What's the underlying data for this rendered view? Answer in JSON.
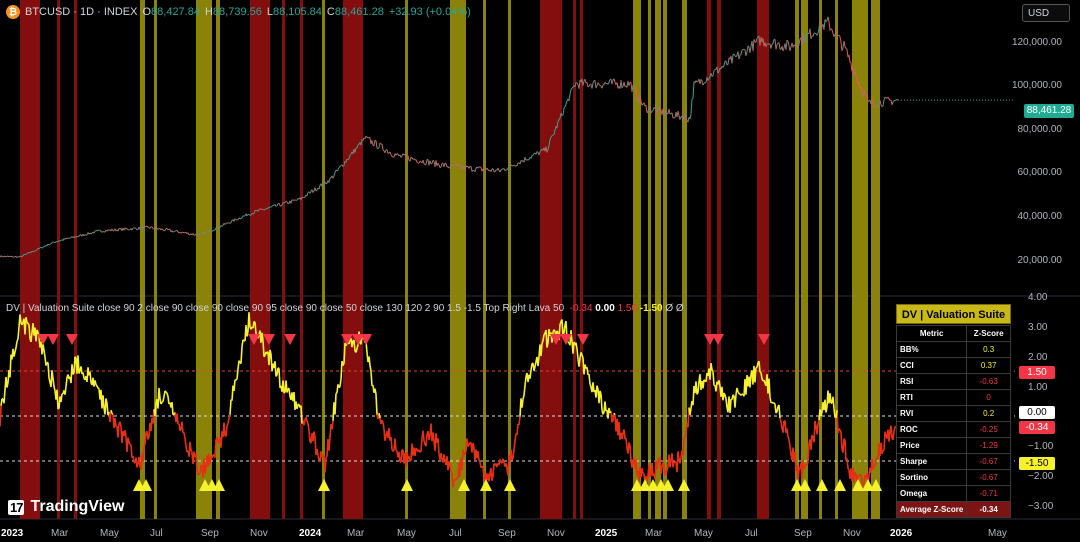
{
  "header": {
    "symbol": "BTCUSD · 1D · INDEX",
    "open_label": "O",
    "open": "88,427.84",
    "high_label": "H",
    "high": "88,739.56",
    "low_label": "L",
    "low": "88,105.84",
    "close_label": "C",
    "close": "88,461.28",
    "change": "+32.93 (+0.04%)"
  },
  "currency": "USD",
  "price_axis": {
    "ticks": [
      "120,000.00",
      "100,000.00",
      "80,000.00",
      "60,000.00",
      "40,000.00",
      "20,000.00"
    ],
    "last_price": "88,461.28"
  },
  "indicator": {
    "header_text": "DV | Valuation Suite close 90 2 close 90 close 90 close 90 95 close 90 close 50 close 130 120 2 90 1.5 -1.5 Top Right Lava 50",
    "value1": "-0.34",
    "value2": "0.00",
    "value3": "1.50",
    "value4": "-1.50",
    "tail": "Ø Ø",
    "axis_ticks": [
      "4.00",
      "3.00",
      "2.00",
      "1.00",
      "−1.00",
      "−2.00",
      "−3.00"
    ],
    "badges": {
      "upper": "1.50",
      "zero": "0.00",
      "current": "-0.34",
      "lower": "-1.50"
    }
  },
  "valuation_table": {
    "title": "DV | Valuation Suite",
    "col_metric": "Metric",
    "col_z": "Z-Score",
    "rows": [
      {
        "metric": "BB%",
        "z": "0.3"
      },
      {
        "metric": "CCI",
        "z": "0.37"
      },
      {
        "metric": "RSI",
        "z": "-0.63"
      },
      {
        "metric": "RTI",
        "z": "0"
      },
      {
        "metric": "RVI",
        "z": "0.2"
      },
      {
        "metric": "ROC",
        "z": "-0.25"
      },
      {
        "metric": "Price",
        "z": "-1.29"
      },
      {
        "metric": "Sharpe",
        "z": "-0.67"
      },
      {
        "metric": "Sortino",
        "z": "-0.67"
      },
      {
        "metric": "Omega",
        "z": "-0.71"
      }
    ],
    "average_label": "Average Z-Score",
    "average": "-0.34"
  },
  "time_axis": [
    "2023",
    "Mar",
    "May",
    "Jul",
    "Sep",
    "Nov",
    "2024",
    "Mar",
    "May",
    "Jul",
    "Sep",
    "Nov",
    "2025",
    "Mar",
    "May",
    "Jul",
    "Sep",
    "Nov",
    "2026",
    "May"
  ],
  "logo": {
    "mark": "17",
    "text": "TradingView"
  },
  "colors": {
    "up": "#26a69a",
    "down": "#ef5350",
    "red_zone": "#8b0e0e",
    "yellow_zone": "#9a900a",
    "osc_high": "#f5f22b",
    "osc_low": "#e82f14",
    "table_title": "#c9b918",
    "avg_row": "#7d1414"
  },
  "chart_data": {
    "type": "line",
    "x": [
      "2023-01",
      "2023-03",
      "2023-05",
      "2023-07",
      "2023-09",
      "2023-11",
      "2024-01",
      "2024-03",
      "2024-05",
      "2024-07",
      "2024-09",
      "2024-11",
      "2025-01",
      "2025-03",
      "2025-05",
      "2025-07",
      "2025-09",
      "2025-11",
      "2025-12"
    ],
    "series": [
      {
        "values": [
          16800,
          23500,
          28500,
          30000,
          26500,
          36500,
          43000,
          68000,
          63000,
          58000,
          60000,
          95000,
          96000,
          85000,
          103000,
          118000,
          112000,
          91000,
          88461
        ]
      },
      {
        "values": [
          1.8,
          0.5,
          0.2,
          -1.5,
          -1.6,
          2.0,
          0.2,
          2.2,
          -1.2,
          -1.9,
          -1.6,
          2.4,
          1.0,
          -2.0,
          1.2,
          1.4,
          -1.8,
          -2.1,
          -0.34
        ]
      }
    ],
    "ylim": [
      0,
      130000
    ],
    "osc_ylim": [
      -3.5,
      4
    ],
    "thresholds": [
      1.5,
      0,
      -1.5
    ]
  }
}
